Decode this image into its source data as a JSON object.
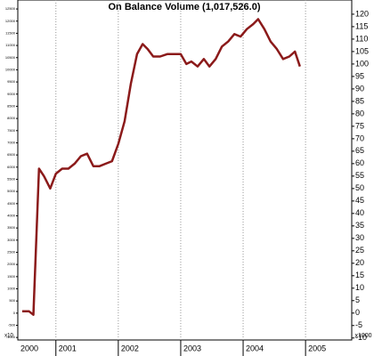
{
  "chart_data": {
    "type": "line",
    "title": "On Balance Volume (1,017,526.0)",
    "x": [
      2000.46,
      2000.57,
      2000.64,
      2000.73,
      2000.81,
      2000.91,
      2001.0,
      2001.1,
      2001.2,
      2001.3,
      2001.4,
      2001.5,
      2001.6,
      2001.7,
      2001.8,
      2001.9,
      2002.0,
      2002.1,
      2002.2,
      2002.3,
      2002.39,
      2002.47,
      2002.56,
      2002.67,
      2002.79,
      2002.9,
      2003.0,
      2003.09,
      2003.17,
      2003.27,
      2003.37,
      2003.46,
      2003.56,
      2003.66,
      2003.76,
      2003.86,
      2003.96,
      2004.06,
      2004.16,
      2004.24,
      2004.34,
      2004.44,
      2004.54,
      2004.64,
      2004.74,
      2004.83,
      2004.91
    ],
    "series": [
      {
        "color": "#8b1a1a",
        "values": [
          0.7,
          0.7,
          -0.7,
          58,
          55,
          50,
          56,
          58,
          58,
          60,
          63,
          64,
          59,
          59,
          60,
          61,
          68,
          77,
          92,
          104,
          108,
          106,
          103,
          103,
          104,
          104,
          104,
          100,
          101,
          99,
          102,
          99,
          102,
          107,
          109,
          112,
          111,
          114,
          116,
          118,
          114,
          109,
          106,
          102,
          103,
          105,
          99
        ]
      }
    ],
    "xlim": [
      2000.39,
      2005.74
    ],
    "xticks": [
      2000,
      2001,
      2002,
      2003,
      2004,
      2005
    ],
    "ylim": [
      -10.8,
      125.7
    ],
    "yticks": [
      -10,
      -5,
      0,
      5,
      10,
      15,
      20,
      25,
      30,
      35,
      40,
      45,
      50,
      55,
      60,
      65,
      70,
      75,
      80,
      85,
      90,
      95,
      100,
      105,
      110,
      115,
      120
    ],
    "y_label": "x1000",
    "y2lim": [
      -1103,
      12868
    ],
    "y2ticks": [
      -1000,
      -500,
      0,
      500,
      1000,
      1500,
      2000,
      2500,
      3000,
      3500,
      4000,
      4500,
      5000,
      5500,
      6000,
      6500,
      7000,
      7500,
      8000,
      8500,
      9000,
      9500,
      10000,
      10500,
      11000,
      11500,
      12000,
      12500
    ],
    "y2_label": "x10",
    "grid": true
  }
}
